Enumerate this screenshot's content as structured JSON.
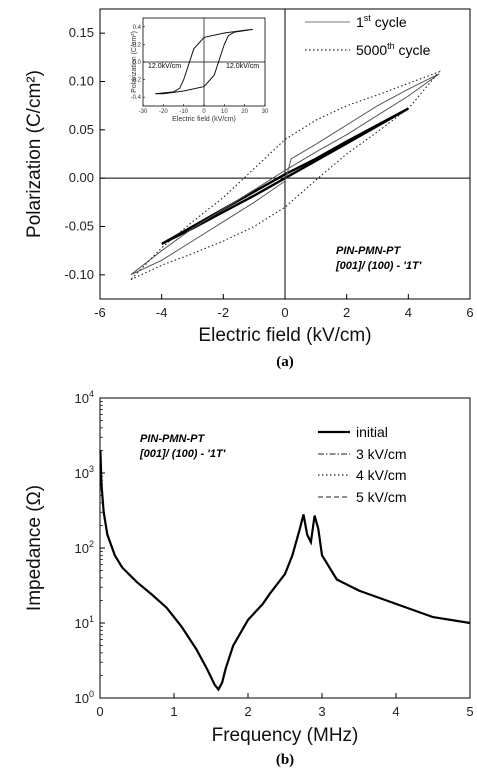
{
  "chart_data": [
    {
      "type": "line",
      "caption": "(a)",
      "xlabel": "Electric field (kV/cm)",
      "ylabel": "Polarization (C/cm²)",
      "xlim": [
        -6,
        6
      ],
      "ylim": [
        -0.125,
        0.175
      ],
      "xticks": [
        "-6",
        "-4",
        "-2",
        "0",
        "2",
        "4",
        "6"
      ],
      "yticks": [
        "-0.10",
        "-0.05",
        "0.00",
        "0.05",
        "0.10",
        "0.15"
      ],
      "annotation": [
        "PIN-PMN-PT",
        "[001]/ (100) - '1T'"
      ],
      "legend": [
        {
          "base": "1",
          "sup": "st",
          "rest": " cycle",
          "style": "solid"
        },
        {
          "base": "5000",
          "sup": "th",
          "rest": " cycle",
          "style": "dotted"
        }
      ],
      "series": [
        {
          "style": "solid",
          "x": [
            -4,
            -3,
            -2,
            -1,
            0,
            1,
            2,
            3,
            4,
            3,
            2,
            1,
            0,
            -1,
            -2,
            -3,
            -4
          ],
          "y": [
            -0.068,
            -0.052,
            -0.035,
            -0.018,
            0.0,
            0.018,
            0.036,
            0.054,
            0.072,
            0.055,
            0.038,
            0.02,
            0.004,
            -0.014,
            -0.032,
            -0.05,
            -0.068
          ]
        },
        {
          "style": "solid",
          "x": [
            -5,
            -4,
            -3,
            -2,
            -1,
            0,
            0.2,
            1,
            2,
            3,
            4,
            5,
            4,
            3,
            2,
            1,
            0,
            -1,
            -2,
            -3,
            -4,
            -5
          ],
          "y": [
            -0.1,
            -0.085,
            -0.065,
            -0.045,
            -0.025,
            -0.003,
            0.02,
            0.035,
            0.055,
            0.075,
            0.092,
            0.108,
            0.085,
            0.065,
            0.045,
            0.027,
            0.008,
            -0.012,
            -0.032,
            -0.052,
            -0.075,
            -0.1
          ]
        },
        {
          "style": "dotted",
          "x": [
            -5,
            -4,
            -3,
            -2,
            -1,
            0,
            1,
            2,
            3,
            4,
            5,
            4,
            3,
            2,
            1,
            0,
            -1,
            -2,
            -3,
            -4,
            -5
          ],
          "y": [
            -0.105,
            -0.09,
            -0.078,
            -0.065,
            -0.05,
            -0.03,
            -0.002,
            0.025,
            0.048,
            0.072,
            0.11,
            0.098,
            0.086,
            0.075,
            0.06,
            0.04,
            0.01,
            -0.02,
            -0.045,
            -0.072,
            -0.105
          ]
        }
      ],
      "inset": {
        "xlabel": "Electric field (kV/cm)",
        "ylabel": "Polarization (C/cm²)",
        "xlim": [
          -30,
          30
        ],
        "ylim": [
          -0.5,
          0.5
        ],
        "xticks": [
          "-30",
          "-20",
          "-10",
          "0",
          "10",
          "20",
          "30"
        ],
        "yticks": [
          "-0.4",
          "-0.2",
          "0.0",
          "0.2",
          "0.4"
        ],
        "left_label": "12.0kV/cm",
        "right_label": "12.0kV/cm",
        "loop": {
          "x": [
            -24,
            -15,
            -12,
            -10,
            -5,
            0,
            10,
            20,
            24,
            15,
            12,
            10,
            5,
            0,
            -10,
            -20,
            -24
          ],
          "y": [
            -0.36,
            -0.34,
            -0.3,
            -0.2,
            0.15,
            0.28,
            0.33,
            0.36,
            0.37,
            0.34,
            0.3,
            0.2,
            -0.15,
            -0.28,
            -0.33,
            -0.36,
            -0.36
          ]
        }
      }
    },
    {
      "type": "line",
      "caption": "(b)",
      "xlabel": "Frequency (MHz)",
      "ylabel": "Impedance (Ω)",
      "xlim": [
        0,
        5
      ],
      "ylim": [
        1,
        10000
      ],
      "yscale": "log",
      "xticks": [
        "0",
        "1",
        "2",
        "3",
        "4",
        "5"
      ],
      "yticks": [
        {
          "base": "10",
          "exp": "0"
        },
        {
          "base": "10",
          "exp": "1"
        },
        {
          "base": "10",
          "exp": "2"
        },
        {
          "base": "10",
          "exp": "3"
        },
        {
          "base": "10",
          "exp": "4"
        }
      ],
      "annotation": [
        "PIN-PMN-PT",
        "[001]/ (100) - '1T'"
      ],
      "legend": [
        {
          "name": "initial",
          "style": "thick"
        },
        {
          "name": "3 kV/cm",
          "style": "dashdot"
        },
        {
          "name": "4 kV/cm",
          "style": "dotted"
        },
        {
          "name": "5 kV/cm",
          "style": "dashed"
        }
      ],
      "x": [
        0.005,
        0.02,
        0.05,
        0.1,
        0.2,
        0.3,
        0.5,
        0.7,
        0.9,
        1.1,
        1.3,
        1.45,
        1.55,
        1.6,
        1.65,
        1.7,
        1.8,
        2.0,
        2.2,
        2.3,
        2.5,
        2.6,
        2.7,
        2.75,
        2.8,
        2.85,
        2.9,
        2.95,
        3.0,
        3.2,
        3.5,
        4.0,
        4.5,
        5.0
      ],
      "y": [
        2000,
        700,
        300,
        150,
        80,
        55,
        35,
        24,
        16,
        9,
        4.5,
        2.4,
        1.5,
        1.3,
        1.6,
        2.5,
        5,
        11,
        18,
        25,
        45,
        80,
        180,
        280,
        150,
        120,
        270,
        180,
        80,
        38,
        27,
        18,
        12,
        10
      ]
    }
  ]
}
